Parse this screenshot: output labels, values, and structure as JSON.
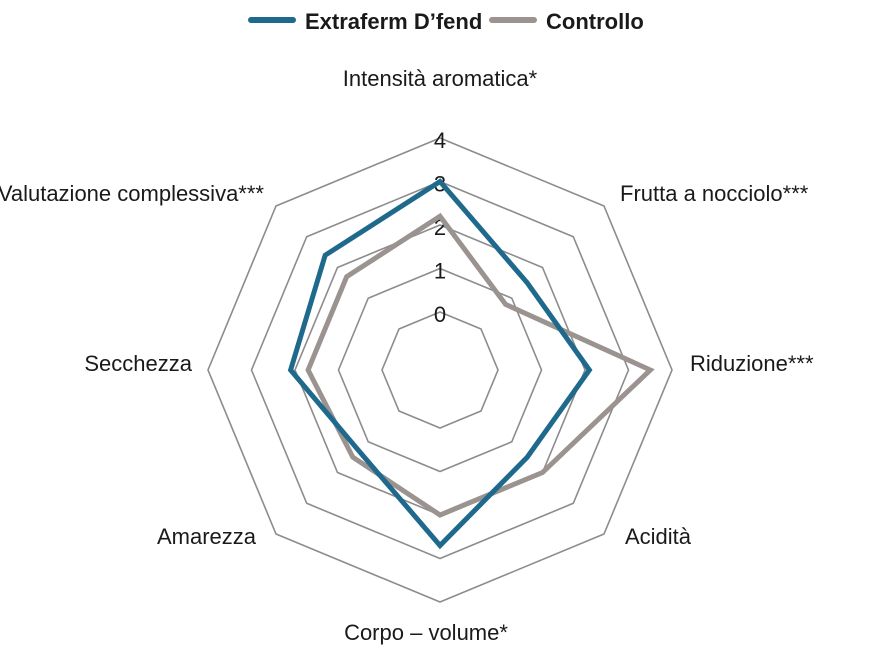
{
  "chart_data": {
    "type": "radar",
    "axes": [
      "Intensità aromatica*",
      "Frutta a nocciolo***",
      "Riduzione***",
      "Acidità",
      "Corpo – volume*",
      "Amarezza",
      "Secchezza",
      "Valutazione complessiva***"
    ],
    "rlim": [
      0,
      4
    ],
    "ticks": [
      "0",
      "1",
      "2",
      "3",
      "4"
    ],
    "legend_position": "top-center",
    "series": [
      {
        "name": "Extraferm D’fend",
        "color": "#1f6a8c",
        "values": [
          3.0,
          1.5,
          2.1,
          1.5,
          2.7,
          1.3,
          2.1,
          2.4
        ]
      },
      {
        "name": "Controllo",
        "color": "#9a9390",
        "values": [
          2.2,
          0.8,
          3.5,
          2.0,
          2.0,
          1.5,
          1.7,
          1.7
        ]
      }
    ]
  }
}
